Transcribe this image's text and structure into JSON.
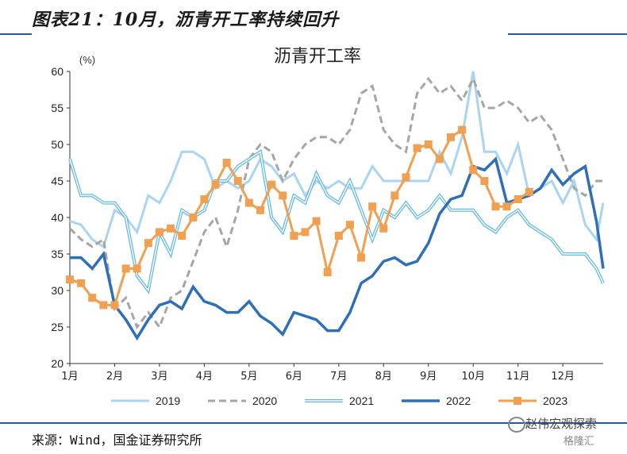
{
  "figure_title": "图表21：10月，沥青开工率持续回升",
  "source_text": "来源：Wind，国金证券研究所",
  "watermark": {
    "line1": "赵伟宏观探索",
    "line2": "格隆汇"
  },
  "colors": {
    "2019": "#a9d4f2",
    "2020": "#a6a6a6",
    "2021": "#5fb8e6",
    "2022": "#2e6fb8",
    "2023": "#f0a050",
    "rule": "#2b579a"
  },
  "chart_data": {
    "type": "line",
    "title": "沥青开工率",
    "ylabel": "(%)",
    "ylim": [
      20,
      60
    ],
    "yticks": [
      20,
      25,
      30,
      35,
      40,
      45,
      50,
      55,
      60
    ],
    "xlim": [
      1,
      12.9
    ],
    "xticks": [
      1,
      2,
      3,
      4,
      5,
      6,
      7,
      8,
      9,
      10,
      11,
      12
    ],
    "xtick_labels": [
      "1月",
      "2月",
      "3月",
      "4月",
      "5月",
      "6月",
      "7月",
      "8月",
      "9月",
      "10月",
      "11月",
      "12月"
    ],
    "legend": "bottom",
    "grid": false,
    "series": [
      {
        "name": "2019",
        "style": "solid",
        "points": [
          [
            1,
            39.5
          ],
          [
            1.25,
            39
          ],
          [
            1.5,
            37
          ],
          [
            1.75,
            36
          ],
          [
            2,
            41
          ],
          [
            2.25,
            40
          ],
          [
            2.5,
            38
          ],
          [
            2.75,
            43
          ],
          [
            3,
            42
          ],
          [
            3.25,
            45
          ],
          [
            3.5,
            49
          ],
          [
            3.75,
            49
          ],
          [
            4,
            48
          ],
          [
            4.25,
            44
          ],
          [
            4.5,
            45
          ],
          [
            4.75,
            44
          ],
          [
            5,
            45
          ],
          [
            5.25,
            48
          ],
          [
            5.5,
            47
          ],
          [
            5.75,
            45
          ],
          [
            6,
            46
          ],
          [
            6.25,
            43
          ],
          [
            6.5,
            45
          ],
          [
            6.75,
            44
          ],
          [
            7,
            45
          ],
          [
            7.25,
            44
          ],
          [
            7.5,
            44
          ],
          [
            7.75,
            47
          ],
          [
            8,
            45
          ],
          [
            8.25,
            45
          ],
          [
            8.5,
            45
          ],
          [
            8.75,
            45
          ],
          [
            9,
            45
          ],
          [
            9.25,
            49
          ],
          [
            9.5,
            46
          ],
          [
            9.75,
            51
          ],
          [
            10,
            60
          ],
          [
            10.25,
            49
          ],
          [
            10.5,
            49
          ],
          [
            10.75,
            46
          ],
          [
            11,
            50
          ],
          [
            11.25,
            43
          ],
          [
            11.5,
            44
          ],
          [
            11.75,
            45
          ],
          [
            12,
            42
          ],
          [
            12.25,
            45
          ],
          [
            12.5,
            39
          ],
          [
            12.75,
            37
          ],
          [
            12.9,
            42
          ]
        ]
      },
      {
        "name": "2020",
        "style": "dashed",
        "points": [
          [
            1,
            38.5
          ],
          [
            1.25,
            37
          ],
          [
            1.5,
            36
          ],
          [
            1.75,
            37
          ],
          [
            2,
            27.5
          ],
          [
            2.25,
            29
          ],
          [
            2.5,
            25
          ],
          [
            2.75,
            27
          ],
          [
            3,
            25
          ],
          [
            3.25,
            29
          ],
          [
            3.5,
            30
          ],
          [
            3.75,
            34
          ],
          [
            4,
            38
          ],
          [
            4.25,
            40
          ],
          [
            4.5,
            36
          ],
          [
            4.75,
            41
          ],
          [
            5,
            48
          ],
          [
            5.25,
            50
          ],
          [
            5.5,
            49
          ],
          [
            5.75,
            45
          ],
          [
            6,
            48
          ],
          [
            6.25,
            50
          ],
          [
            6.5,
            51
          ],
          [
            6.75,
            51
          ],
          [
            7,
            50
          ],
          [
            7.25,
            52
          ],
          [
            7.5,
            57
          ],
          [
            7.75,
            58
          ],
          [
            8,
            52
          ],
          [
            8.25,
            50
          ],
          [
            8.5,
            49
          ],
          [
            8.75,
            57
          ],
          [
            9,
            59
          ],
          [
            9.25,
            57
          ],
          [
            9.5,
            58
          ],
          [
            9.75,
            56
          ],
          [
            10,
            59
          ],
          [
            10.25,
            55
          ],
          [
            10.5,
            55
          ],
          [
            10.75,
            56
          ],
          [
            11,
            55
          ],
          [
            11.25,
            53
          ],
          [
            11.5,
            54
          ],
          [
            11.75,
            52
          ],
          [
            12,
            48
          ],
          [
            12.25,
            44
          ],
          [
            12.5,
            43
          ],
          [
            12.75,
            45
          ],
          [
            12.9,
            45
          ]
        ]
      },
      {
        "name": "2021",
        "style": "double",
        "points": [
          [
            1,
            48
          ],
          [
            1.25,
            43
          ],
          [
            1.5,
            43
          ],
          [
            1.75,
            42
          ],
          [
            2,
            42
          ],
          [
            2.25,
            40
          ],
          [
            2.5,
            32
          ],
          [
            2.75,
            30
          ],
          [
            3,
            38
          ],
          [
            3.25,
            35
          ],
          [
            3.5,
            41
          ],
          [
            3.75,
            40
          ],
          [
            4,
            41
          ],
          [
            4.25,
            45
          ],
          [
            4.5,
            45
          ],
          [
            4.75,
            47
          ],
          [
            5,
            48
          ],
          [
            5.25,
            49
          ],
          [
            5.5,
            40
          ],
          [
            5.75,
            38
          ],
          [
            6,
            43
          ],
          [
            6.25,
            42
          ],
          [
            6.5,
            46
          ],
          [
            6.75,
            43
          ],
          [
            7,
            42
          ],
          [
            7.25,
            45
          ],
          [
            7.5,
            41
          ],
          [
            7.75,
            37
          ],
          [
            8,
            41
          ],
          [
            8.25,
            40
          ],
          [
            8.5,
            42
          ],
          [
            8.75,
            40
          ],
          [
            9,
            41
          ],
          [
            9.25,
            43
          ],
          [
            9.5,
            41
          ],
          [
            9.75,
            41
          ],
          [
            10,
            41
          ],
          [
            10.25,
            39
          ],
          [
            10.5,
            38
          ],
          [
            10.75,
            40
          ],
          [
            11,
            41
          ],
          [
            11.25,
            39
          ],
          [
            11.5,
            38
          ],
          [
            11.75,
            37
          ],
          [
            12,
            35
          ],
          [
            12.25,
            35
          ],
          [
            12.5,
            35
          ],
          [
            12.75,
            33
          ],
          [
            12.9,
            31
          ]
        ]
      },
      {
        "name": "2022",
        "style": "thick",
        "points": [
          [
            1,
            34.5
          ],
          [
            1.25,
            34.5
          ],
          [
            1.5,
            33
          ],
          [
            1.75,
            35
          ],
          [
            2,
            28
          ],
          [
            2.25,
            26
          ],
          [
            2.5,
            23.5
          ],
          [
            2.75,
            26
          ],
          [
            3,
            28
          ],
          [
            3.25,
            28.5
          ],
          [
            3.5,
            27.5
          ],
          [
            3.75,
            30.5
          ],
          [
            4,
            28.5
          ],
          [
            4.25,
            28
          ],
          [
            4.5,
            27
          ],
          [
            4.75,
            27
          ],
          [
            5,
            28.5
          ],
          [
            5.25,
            26.5
          ],
          [
            5.5,
            25.5
          ],
          [
            5.75,
            24
          ],
          [
            6,
            27
          ],
          [
            6.25,
            26.5
          ],
          [
            6.5,
            26
          ],
          [
            6.75,
            24.5
          ],
          [
            7,
            24.5
          ],
          [
            7.25,
            27
          ],
          [
            7.5,
            31
          ],
          [
            7.75,
            32
          ],
          [
            8,
            34
          ],
          [
            8.25,
            34.5
          ],
          [
            8.5,
            33.5
          ],
          [
            8.75,
            34
          ],
          [
            9,
            36.5
          ],
          [
            9.25,
            40.5
          ],
          [
            9.5,
            42.5
          ],
          [
            9.75,
            43
          ],
          [
            10,
            47
          ],
          [
            10.25,
            46.5
          ],
          [
            10.5,
            48
          ],
          [
            10.75,
            42
          ],
          [
            11,
            42.5
          ],
          [
            11.25,
            43
          ],
          [
            11.5,
            44
          ],
          [
            11.75,
            46.5
          ],
          [
            12,
            44.5
          ],
          [
            12.25,
            46
          ],
          [
            12.5,
            47
          ],
          [
            12.75,
            39.5
          ],
          [
            12.9,
            33
          ]
        ]
      },
      {
        "name": "2023",
        "style": "markers",
        "points": [
          [
            1,
            31.5
          ],
          [
            1.25,
            31
          ],
          [
            1.5,
            29
          ],
          [
            1.75,
            28
          ],
          [
            2,
            28
          ],
          [
            2.25,
            33
          ],
          [
            2.5,
            33
          ],
          [
            2.75,
            36.5
          ],
          [
            3,
            38
          ],
          [
            3.25,
            38.5
          ],
          [
            3.5,
            37.5
          ],
          [
            3.75,
            40
          ],
          [
            4,
            42.5
          ],
          [
            4.25,
            44.5
          ],
          [
            4.5,
            47.5
          ],
          [
            4.75,
            45
          ],
          [
            5,
            42
          ],
          [
            5.25,
            41
          ],
          [
            5.5,
            44.5
          ],
          [
            5.75,
            43
          ],
          [
            6,
            37.5
          ],
          [
            6.25,
            38
          ],
          [
            6.5,
            39.5
          ],
          [
            6.75,
            32.5
          ],
          [
            7,
            37.5
          ],
          [
            7.25,
            39
          ],
          [
            7.5,
            34.5
          ],
          [
            7.75,
            41.5
          ],
          [
            8,
            38.5
          ],
          [
            8.25,
            43
          ],
          [
            8.5,
            45.5
          ],
          [
            8.75,
            49.5
          ],
          [
            9,
            50
          ],
          [
            9.25,
            48
          ],
          [
            9.5,
            51
          ],
          [
            9.75,
            52
          ],
          [
            10,
            46.5
          ],
          [
            10.25,
            45
          ],
          [
            10.5,
            41.5
          ],
          [
            10.75,
            41.5
          ],
          [
            11,
            42.5
          ],
          [
            11.25,
            43.5
          ]
        ]
      }
    ]
  }
}
